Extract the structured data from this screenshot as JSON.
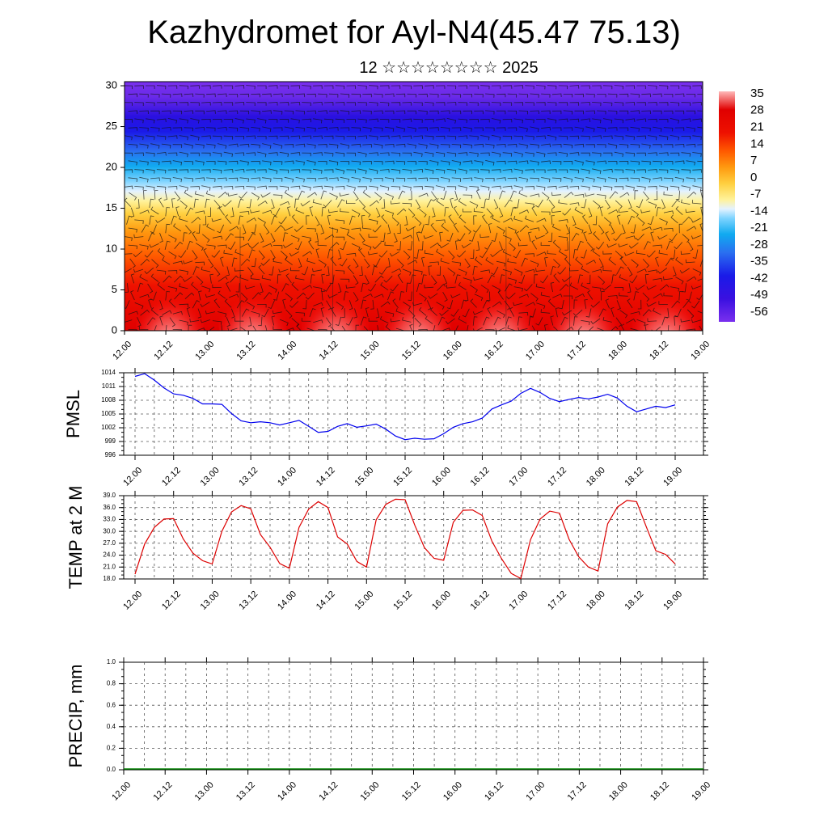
{
  "header": {
    "title": "Kazhydromet for Ayl-N4(45.47 75.13)",
    "subtitle": "12 ☆☆☆☆☆☆☆☆ 2025"
  },
  "chart_data": [
    {
      "type": "heatmap",
      "name": "temperature-wind-cross-section",
      "title": "",
      "xlabel": "",
      "ylabel": "",
      "x_tick_labels": [
        "12.00",
        "12.12",
        "13.00",
        "13.12",
        "14.00",
        "14.12",
        "15.00",
        "15.12",
        "16.00",
        "16.12",
        "17.00",
        "17.12",
        "18.00",
        "18.12",
        "19.00"
      ],
      "y_tick_labels": [
        "0",
        "5",
        "10",
        "15",
        "20",
        "25",
        "30"
      ],
      "ylim": [
        0,
        30.5
      ],
      "colorbar_labels": [
        "35",
        "28",
        "21",
        "14",
        "7",
        "0",
        "-7",
        "-14",
        "-21",
        "-28",
        "-35",
        "-42",
        "-49",
        "-56"
      ],
      "colorbar_range": [
        -60,
        38
      ],
      "colors": {
        "hot": "#ffb3b3",
        "red": "#e60000",
        "orange": "#ff7a00",
        "yellow": "#ffe070",
        "pale": "#e8f4ff",
        "cyan": "#1ab0f0",
        "blue": "#1a1aee",
        "violet": "#7a2ee8"
      },
      "wind_barbs": true
    },
    {
      "type": "line",
      "name": "pmsl",
      "ylabel": "PMSL",
      "ylim": [
        996,
        1014
      ],
      "y_tick_labels": [
        "996",
        "999",
        "1002",
        "1005",
        "1008",
        "1011",
        "1014"
      ],
      "x_tick_labels": [
        "12.00",
        "12.12",
        "13.00",
        "13.12",
        "14.00",
        "14.12",
        "15.00",
        "15.12",
        "16.00",
        "16.12",
        "17.00",
        "17.12",
        "18.00",
        "18.12",
        "19.00"
      ],
      "x_hours": [
        0,
        3,
        6,
        9,
        12,
        15,
        18,
        21,
        24,
        27,
        30,
        33,
        36,
        39,
        42,
        45,
        48,
        51,
        54,
        57,
        60,
        63,
        66,
        69,
        72,
        75,
        78,
        81,
        84,
        87,
        90,
        93,
        96,
        99,
        102,
        105,
        108,
        111,
        114,
        117,
        120,
        123,
        126,
        129,
        132,
        135,
        138,
        141,
        144,
        147,
        150,
        153,
        156,
        159,
        162,
        165,
        168
      ],
      "values": [
        1013.2,
        1013.8,
        1012.4,
        1010.7,
        1009.4,
        1009.1,
        1008.4,
        1007.2,
        1007.2,
        1007.1,
        1005.1,
        1003.5,
        1003.1,
        1003.3,
        1003.1,
        1002.6,
        1003.1,
        1003.6,
        1002.3,
        1001.0,
        1001.2,
        1002.3,
        1002.9,
        1002.1,
        1002.4,
        1002.8,
        1001.7,
        1000.2,
        999.4,
        999.7,
        999.5,
        999.6,
        1000.7,
        1002.1,
        1002.9,
        1003.3,
        1004.1,
        1006.1,
        1007.0,
        1007.8,
        1009.5,
        1010.6,
        1009.7,
        1008.4,
        1007.7,
        1008.2,
        1008.6,
        1008.3,
        1008.7,
        1009.3,
        1008.5,
        1006.7,
        1005.5,
        1006.1,
        1006.7,
        1006.4,
        1007.0
      ],
      "line_color": "#0000ee"
    },
    {
      "type": "line",
      "name": "temp-2m",
      "ylabel": "TEMP at 2 M",
      "ylim": [
        18,
        39
      ],
      "y_tick_labels": [
        "18.0",
        "21.0",
        "24.0",
        "27.0",
        "30.0",
        "33.0",
        "36.0",
        "39.0"
      ],
      "x_tick_labels": [
        "12.00",
        "12.12",
        "13.00",
        "13.12",
        "14.00",
        "14.12",
        "15.00",
        "15.12",
        "16.00",
        "16.12",
        "17.00",
        "17.12",
        "18.00",
        "18.12",
        "19.00"
      ],
      "x_hours": [
        0,
        3,
        6,
        9,
        12,
        15,
        18,
        21,
        24,
        27,
        30,
        33,
        36,
        39,
        42,
        45,
        48,
        51,
        54,
        57,
        60,
        63,
        66,
        69,
        72,
        75,
        78,
        81,
        84,
        87,
        90,
        93,
        96,
        99,
        102,
        105,
        108,
        111,
        114,
        117,
        120,
        123,
        126,
        129,
        132,
        135,
        138,
        141,
        144,
        147,
        150,
        153,
        156,
        159,
        162,
        165,
        168
      ],
      "values": [
        19.2,
        26.8,
        31.0,
        33.1,
        33.2,
        28.1,
        24.5,
        22.6,
        21.8,
        30.0,
        34.9,
        36.5,
        35.7,
        29.2,
        26.0,
        21.9,
        20.7,
        31.0,
        35.6,
        37.5,
        36.0,
        28.6,
        26.8,
        22.4,
        21.0,
        32.9,
        36.8,
        38.1,
        38.0,
        31.6,
        25.9,
        23.2,
        22.7,
        32.3,
        35.3,
        35.4,
        34.0,
        27.5,
        23.1,
        19.4,
        18.1,
        27.9,
        33.1,
        35.1,
        34.6,
        28.0,
        23.6,
        21.0,
        20.0,
        31.9,
        36.1,
        37.8,
        37.5,
        31.2,
        25.1,
        24.2,
        21.8
      ],
      "line_color": "#dd0000"
    },
    {
      "type": "line",
      "name": "precip",
      "ylabel": "PRECIP, mm",
      "ylim": [
        0,
        1
      ],
      "y_tick_labels": [
        "0.0",
        "0.2",
        "0.4",
        "0.6",
        "0.8",
        "1.0"
      ],
      "x_tick_labels": [
        "12.00",
        "12.12",
        "13.00",
        "13.12",
        "14.00",
        "14.12",
        "15.00",
        "15.12",
        "16.00",
        "16.12",
        "17.00",
        "17.12",
        "18.00",
        "18.12",
        "19.00"
      ],
      "values_all": 0.0,
      "line_color": "#008000"
    }
  ]
}
